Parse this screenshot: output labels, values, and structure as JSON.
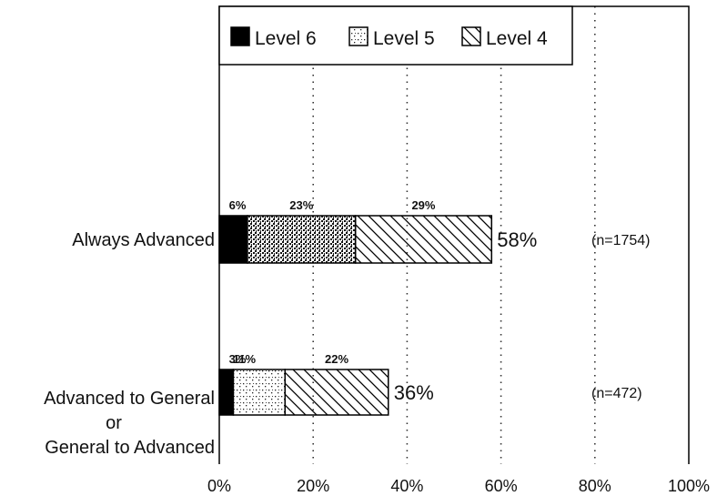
{
  "chart_data": {
    "type": "bar",
    "stacked": true,
    "orientation": "horizontal",
    "categories": [
      [
        "Always Advanced"
      ],
      [
        "Advanced to General",
        "or",
        "General to Advanced"
      ]
    ],
    "series": [
      {
        "name": "Level 6",
        "values": [
          6,
          3
        ],
        "labels": [
          "6%",
          "3%"
        ]
      },
      {
        "name": "Level 5",
        "values": [
          23,
          11
        ],
        "labels": [
          "23%",
          "11%"
        ]
      },
      {
        "name": "Level 4",
        "values": [
          29,
          22
        ],
        "labels": [
          "29%",
          "22%"
        ]
      }
    ],
    "totals": [
      58,
      36
    ],
    "total_labels": [
      "58%",
      "36%"
    ],
    "n_labels": [
      "(n=1754)",
      "(n=472)"
    ],
    "xlim": [
      0,
      100
    ],
    "xticks": [
      0,
      20,
      40,
      60,
      80,
      100
    ],
    "xtick_labels": [
      "0%",
      "20%",
      "40%",
      "60%",
      "80%",
      "100%"
    ],
    "grid": "vertical dotted",
    "legend_position": "top-left",
    "colors": {
      "level6": "#000000",
      "level5": "#ffffff",
      "level4": "#ffffff",
      "frame": "#000000"
    }
  }
}
